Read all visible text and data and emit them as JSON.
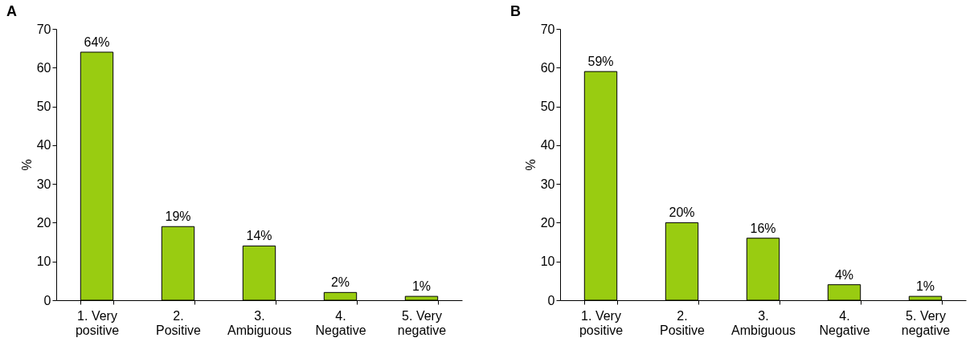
{
  "chart_data": [
    {
      "type": "bar",
      "title": "A",
      "ylabel": "%",
      "categories": [
        "1. Very positive",
        "2. Positive",
        "3. Ambiguous",
        "4. Negative",
        "5. Very negative"
      ],
      "values": [
        64,
        19,
        14,
        2,
        1
      ],
      "value_labels": [
        "64%",
        "19%",
        "14%",
        "2%",
        "1%"
      ],
      "color": "#99cc11",
      "ylim": [
        0,
        70
      ],
      "yticks": [
        0,
        10,
        20,
        30,
        40,
        50,
        60,
        70
      ],
      "grid": false
    },
    {
      "type": "bar",
      "title": "B",
      "ylabel": "%",
      "categories": [
        "1. Very positive",
        "2. Positive",
        "3. Ambiguous",
        "4. Negative",
        "5. Very negative"
      ],
      "values": [
        59,
        20,
        16,
        4,
        1
      ],
      "value_labels": [
        "59%",
        "20%",
        "16%",
        "4%",
        "1%"
      ],
      "color": "#99cc11",
      "ylim": [
        0,
        70
      ],
      "yticks": [
        0,
        10,
        20,
        30,
        40,
        50,
        60,
        70
      ],
      "grid": false
    }
  ]
}
